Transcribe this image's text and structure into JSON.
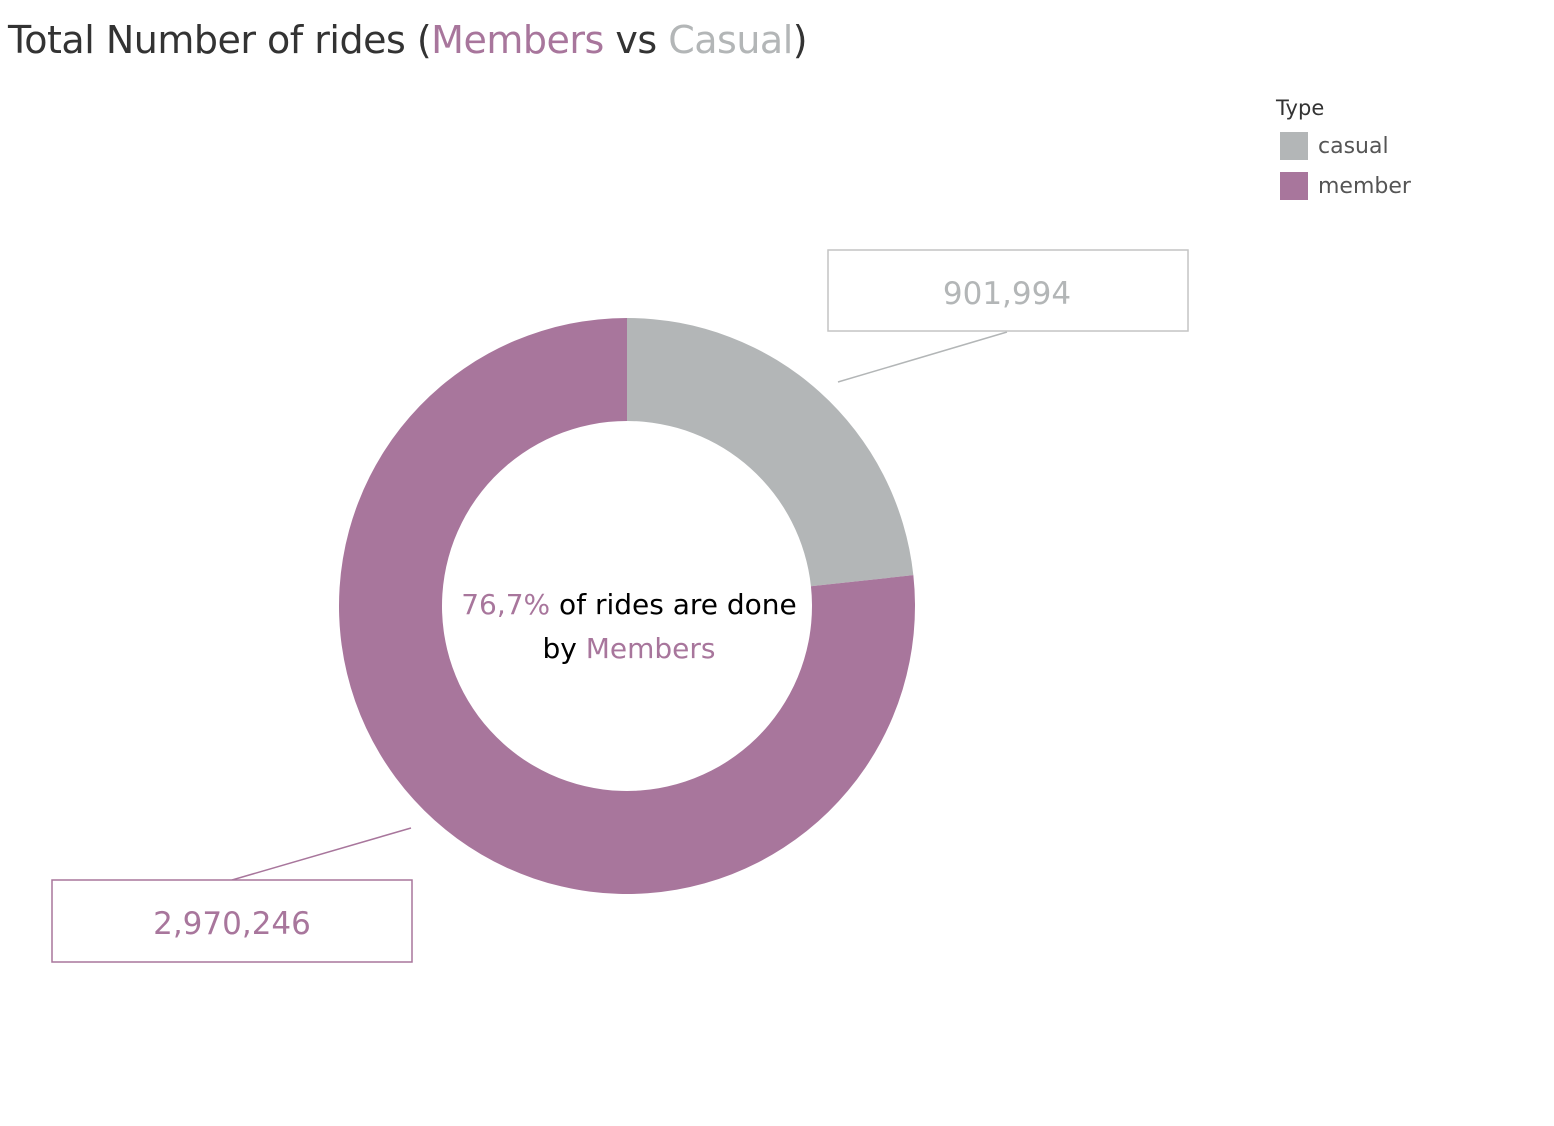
{
  "title": {
    "prefix": "Total Number of rides (",
    "members_word": "Members",
    "vs_word": " vs ",
    "casual_word": "Casual",
    "suffix": ")"
  },
  "colors": {
    "member": "#a8769c",
    "casual": "#b3b6b7",
    "text_dark": "#333333",
    "center_text": "#000000"
  },
  "legend": {
    "title": "Type",
    "items": [
      {
        "label": "casual",
        "color": "#b3b6b7"
      },
      {
        "label": "member",
        "color": "#a8769c"
      }
    ]
  },
  "center_label": {
    "percent": "76,7%",
    "line1_rest": " of rides are done",
    "line2_prefix": "by ",
    "line2_highlight": "Members"
  },
  "chart_data": {
    "type": "pie",
    "donut": true,
    "slices": [
      {
        "label": "casual",
        "value": 901994,
        "display": "901,994",
        "color": "#b3b6b7"
      },
      {
        "label": "member",
        "value": 2970246,
        "display": "2,970,246",
        "color": "#a8769c"
      }
    ],
    "legend_title": "Type",
    "legend_position": "top-right"
  }
}
